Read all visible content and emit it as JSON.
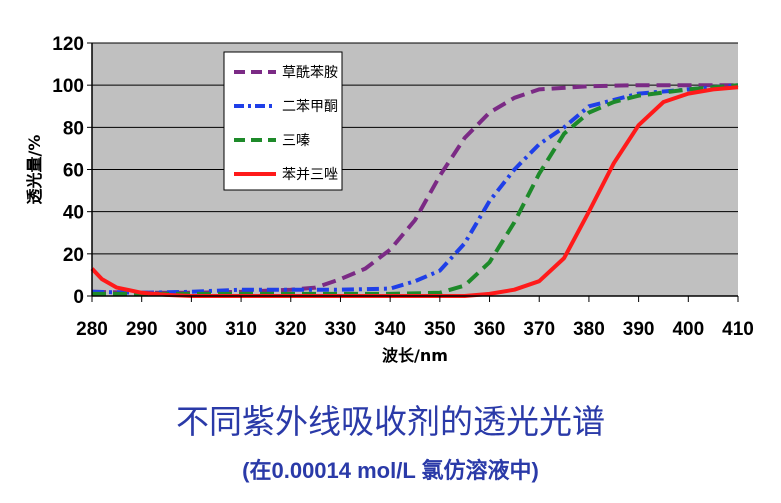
{
  "chart_data": {
    "type": "line",
    "title": "",
    "xlabel": "波长/nm",
    "ylabel": "透光量/%",
    "xlim": [
      280,
      410
    ],
    "ylim": [
      0,
      120
    ],
    "x_ticks": [
      "280",
      "290",
      "300",
      "310",
      "320",
      "330",
      "340",
      "350",
      "360",
      "370",
      "380",
      "390",
      "400",
      "410"
    ],
    "y_ticks": [
      "0",
      "20",
      "40",
      "60",
      "80",
      "100",
      "120"
    ],
    "grid": true,
    "legend": "top-left",
    "series": [
      {
        "name": "草酰苯胺",
        "color": "#7b2a85",
        "style": "dashed",
        "points": [
          [
            280,
            2
          ],
          [
            290,
            1.5
          ],
          [
            300,
            1.5
          ],
          [
            310,
            2
          ],
          [
            320,
            3
          ],
          [
            325,
            4
          ],
          [
            330,
            8
          ],
          [
            335,
            13
          ],
          [
            340,
            22
          ],
          [
            345,
            36
          ],
          [
            350,
            57
          ],
          [
            355,
            75
          ],
          [
            360,
            87
          ],
          [
            365,
            94
          ],
          [
            370,
            98
          ],
          [
            380,
            99.5
          ],
          [
            390,
            100
          ],
          [
            400,
            100
          ],
          [
            410,
            100
          ]
        ]
      },
      {
        "name": "二苯甲酮",
        "color": "#1f3fe8",
        "style": "dashdot",
        "points": [
          [
            280,
            2
          ],
          [
            290,
            1.5
          ],
          [
            300,
            2
          ],
          [
            310,
            3
          ],
          [
            320,
            3
          ],
          [
            330,
            3
          ],
          [
            340,
            3.5
          ],
          [
            345,
            7
          ],
          [
            350,
            12
          ],
          [
            355,
            25
          ],
          [
            360,
            45
          ],
          [
            365,
            60
          ],
          [
            370,
            72
          ],
          [
            375,
            80
          ],
          [
            380,
            90
          ],
          [
            390,
            96
          ],
          [
            400,
            98
          ],
          [
            410,
            100
          ]
        ]
      },
      {
        "name": "三嗪",
        "color": "#1e8a2a",
        "style": "dashed",
        "points": [
          [
            280,
            1
          ],
          [
            290,
            1
          ],
          [
            300,
            1
          ],
          [
            320,
            1
          ],
          [
            340,
            1
          ],
          [
            350,
            1.5
          ],
          [
            355,
            5
          ],
          [
            360,
            16
          ],
          [
            365,
            35
          ],
          [
            370,
            58
          ],
          [
            375,
            77
          ],
          [
            380,
            87
          ],
          [
            385,
            92
          ],
          [
            390,
            95
          ],
          [
            400,
            98
          ],
          [
            410,
            100
          ]
        ]
      },
      {
        "name": "苯并三唑",
        "color": "#ff1a1a",
        "style": "solid",
        "points": [
          [
            280,
            13
          ],
          [
            282,
            8
          ],
          [
            285,
            4
          ],
          [
            290,
            1.5
          ],
          [
            295,
            0.5
          ],
          [
            300,
            0
          ],
          [
            320,
            0
          ],
          [
            340,
            0
          ],
          [
            355,
            0
          ],
          [
            360,
            1
          ],
          [
            365,
            3
          ],
          [
            370,
            7
          ],
          [
            375,
            18
          ],
          [
            380,
            40
          ],
          [
            385,
            63
          ],
          [
            390,
            81
          ],
          [
            395,
            92
          ],
          [
            400,
            96
          ],
          [
            405,
            98
          ],
          [
            410,
            99
          ]
        ]
      }
    ]
  },
  "caption": {
    "title": "不同紫外线吸收剂的透光光谱",
    "subtitle": "(在0.00014 mol/L 氯仿溶液中)"
  }
}
